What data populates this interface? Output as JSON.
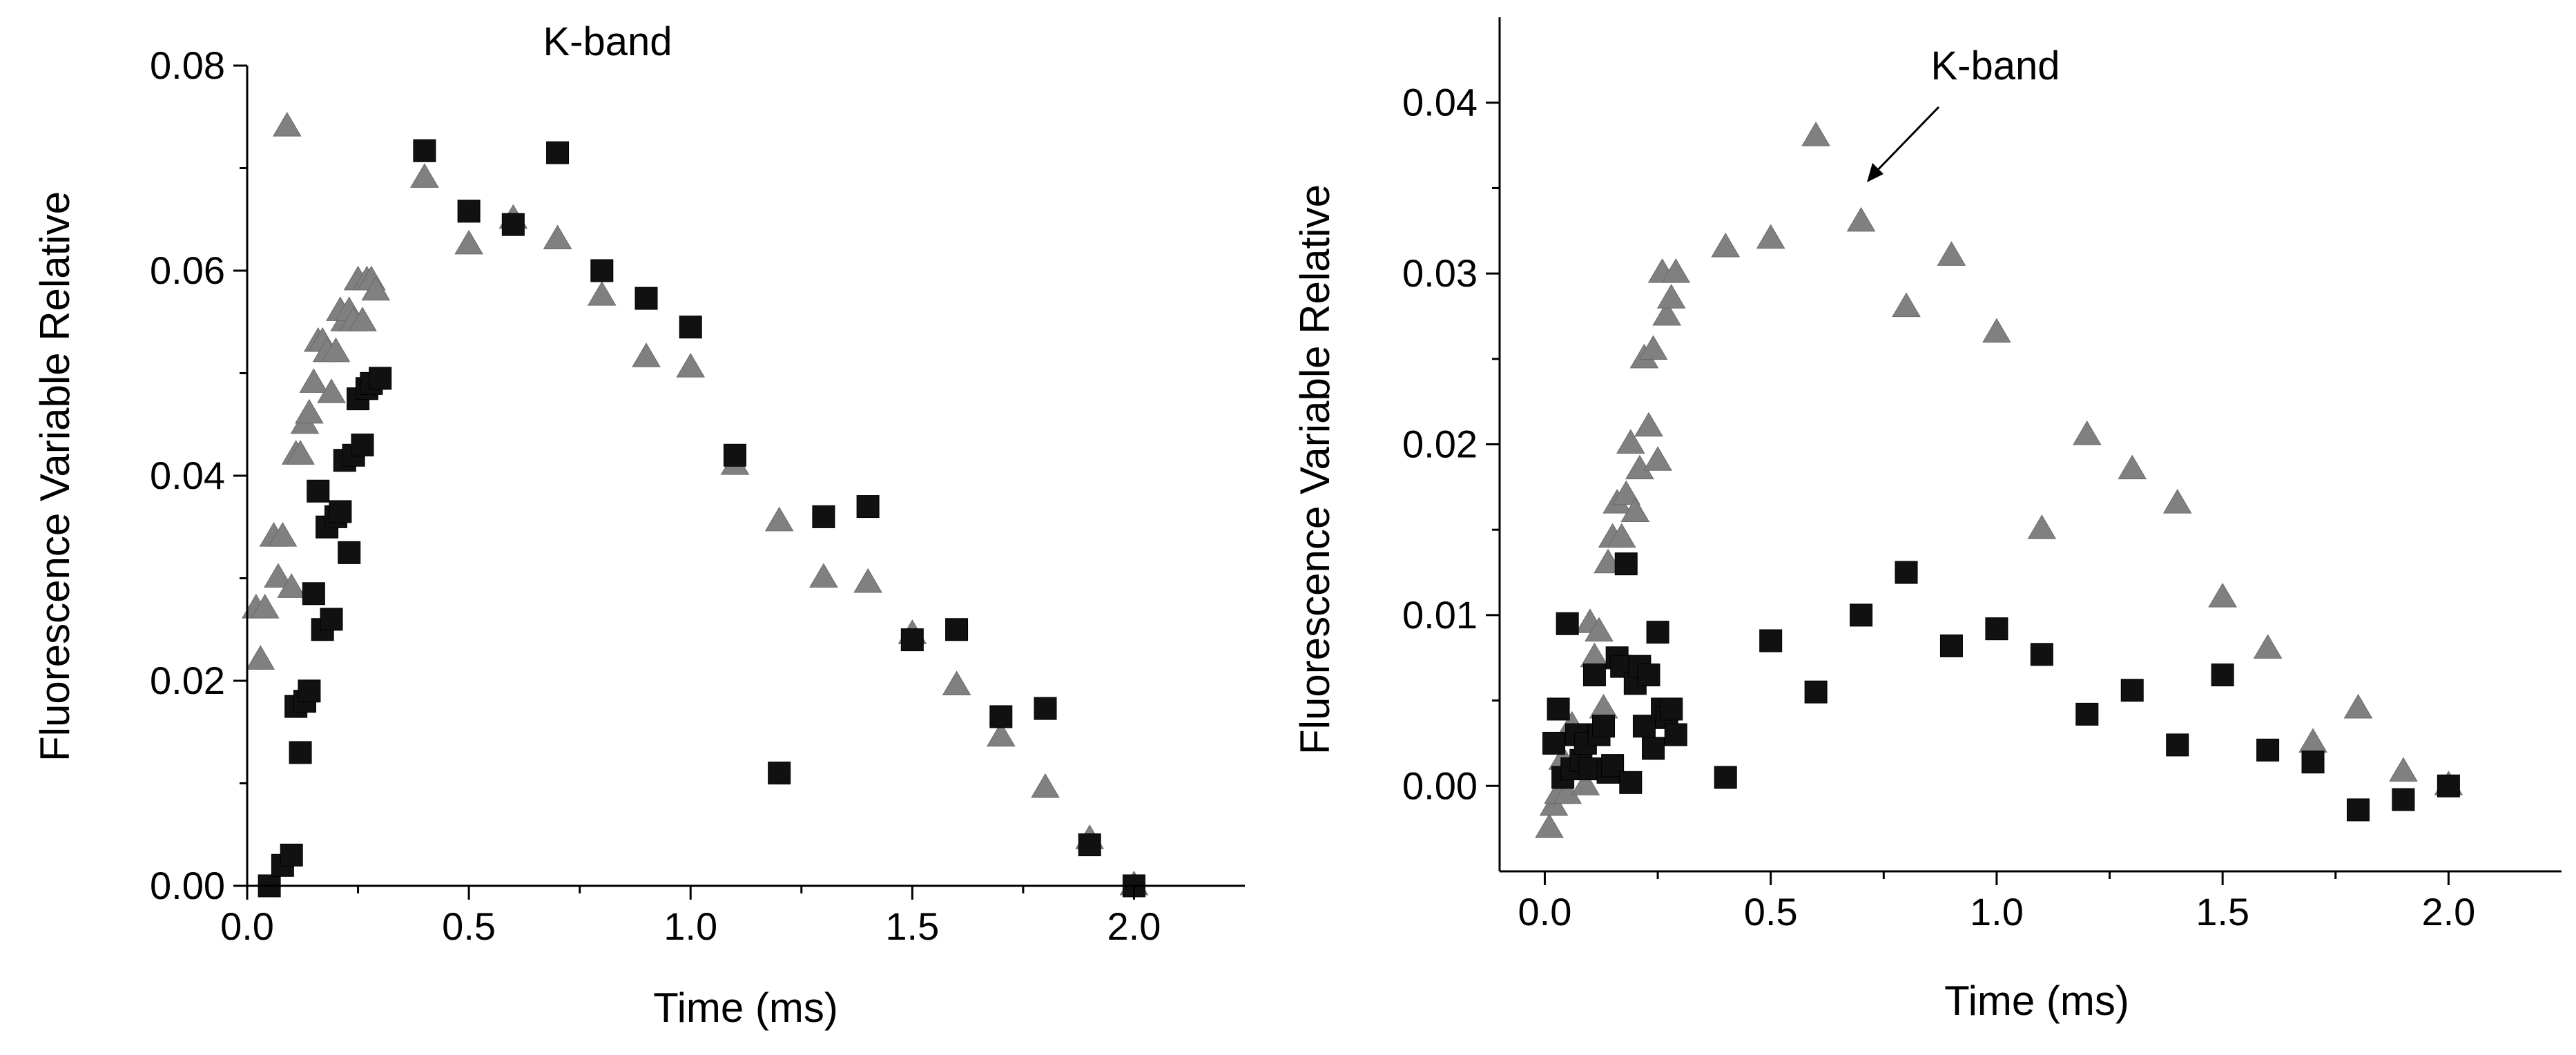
{
  "chart_data": [
    {
      "type": "scatter",
      "title": "",
      "annotation": "K-band",
      "xlabel": "Time  (ms)",
      "ylabel": "Fluorescence Variable Relative",
      "xlim": [
        0.0,
        2.25
      ],
      "ylim": [
        0.0,
        0.08
      ],
      "xticks": [
        0.0,
        0.5,
        1.0,
        1.5,
        2.0
      ],
      "xtick_labels": [
        "0.0",
        "0.5",
        "1.0",
        "1.5",
        "2.0"
      ],
      "yticks": [
        0.0,
        0.02,
        0.04,
        0.06,
        0.08
      ],
      "ytick_labels": [
        "0.00",
        "0.02",
        "0.04",
        "0.06",
        "0.08"
      ],
      "grid": false,
      "series": [
        {
          "name": "squares",
          "marker": "square",
          "color": "#111111",
          "x": [
            0.05,
            0.08,
            0.1,
            0.11,
            0.12,
            0.13,
            0.14,
            0.15,
            0.16,
            0.17,
            0.18,
            0.19,
            0.2,
            0.21,
            0.22,
            0.23,
            0.24,
            0.25,
            0.26,
            0.27,
            0.28,
            0.3,
            0.4,
            0.5,
            0.6,
            0.7,
            0.8,
            0.9,
            1.0,
            1.1,
            1.2,
            1.3,
            1.4,
            1.5,
            1.6,
            1.7,
            1.8,
            1.9,
            2.0
          ],
          "y": [
            0.0,
            0.002,
            0.003,
            0.0175,
            0.013,
            0.018,
            0.019,
            0.0285,
            0.0385,
            0.025,
            0.035,
            0.026,
            0.036,
            0.0365,
            0.0415,
            0.0325,
            0.042,
            0.0475,
            0.043,
            0.0485,
            0.049,
            0.0495,
            0.0717,
            0.0658,
            0.0645,
            0.0715,
            0.06,
            0.0573,
            0.0545,
            0.042,
            0.011,
            0.036,
            0.037,
            0.024,
            0.025,
            0.0165,
            0.0173,
            0.004,
            0.0
          ]
        },
        {
          "name": "triangles",
          "marker": "triangle",
          "color": "#808080",
          "x": [
            0.02,
            0.03,
            0.04,
            0.06,
            0.07,
            0.08,
            0.09,
            0.1,
            0.11,
            0.12,
            0.13,
            0.14,
            0.15,
            0.16,
            0.17,
            0.18,
            0.19,
            0.2,
            0.21,
            0.22,
            0.23,
            0.24,
            0.25,
            0.26,
            0.27,
            0.28,
            0.29,
            0.4,
            0.5,
            0.6,
            0.7,
            0.8,
            0.9,
            1.0,
            1.1,
            1.2,
            1.3,
            1.4,
            1.5,
            1.6,
            1.7,
            1.8,
            1.9,
            2.0
          ],
          "y": [
            0.027,
            0.022,
            0.027,
            0.034,
            0.03,
            0.034,
            0.074,
            0.029,
            0.042,
            0.042,
            0.045,
            0.046,
            0.049,
            0.053,
            0.053,
            0.052,
            0.048,
            0.052,
            0.056,
            0.055,
            0.056,
            0.055,
            0.059,
            0.055,
            0.059,
            0.059,
            0.058,
            0.069,
            0.0625,
            0.065,
            0.063,
            0.0575,
            0.0515,
            0.0505,
            0.041,
            0.0355,
            0.03,
            0.0295,
            0.0245,
            0.0195,
            0.0145,
            0.0095,
            0.0045,
            0.0
          ]
        }
      ]
    },
    {
      "type": "scatter",
      "title": "",
      "annotation": "K-band",
      "xlabel": "Time  (ms)",
      "ylabel": "Fluorescence Variable Relative",
      "xlim": [
        -0.1,
        2.25
      ],
      "ylim": [
        -0.005,
        0.045
      ],
      "xticks": [
        0.0,
        0.5,
        1.0,
        1.5,
        2.0
      ],
      "xtick_labels": [
        "0.0",
        "0.5",
        "1.0",
        "1.5",
        "2.0"
      ],
      "yticks": [
        0.0,
        0.01,
        0.02,
        0.03,
        0.04
      ],
      "ytick_labels": [
        "0.00",
        "0.01",
        "0.02",
        "0.03",
        "0.04"
      ],
      "grid": false,
      "series": [
        {
          "name": "squares",
          "marker": "square",
          "color": "#111111",
          "x": [
            0.02,
            0.03,
            0.04,
            0.05,
            0.06,
            0.07,
            0.08,
            0.09,
            0.1,
            0.11,
            0.12,
            0.13,
            0.14,
            0.15,
            0.16,
            0.17,
            0.18,
            0.19,
            0.2,
            0.21,
            0.22,
            0.23,
            0.24,
            0.25,
            0.26,
            0.27,
            0.28,
            0.29,
            0.4,
            0.5,
            0.6,
            0.7,
            0.8,
            0.9,
            1.0,
            1.1,
            1.2,
            1.3,
            1.4,
            1.5,
            1.6,
            1.7,
            1.8,
            1.9,
            2.0
          ],
          "y": [
            0.0025,
            0.0045,
            0.0005,
            0.0095,
            0.001,
            0.003,
            0.0015,
            0.0025,
            0.001,
            0.0065,
            0.003,
            0.0035,
            0.0008,
            0.0012,
            0.0075,
            0.007,
            0.013,
            0.0002,
            0.006,
            0.007,
            0.0035,
            0.0065,
            0.0022,
            0.009,
            0.0045,
            0.004,
            0.0045,
            0.003,
            0.0005,
            0.0085,
            0.0055,
            0.01,
            0.0125,
            0.0082,
            0.0092,
            0.0077,
            0.0042,
            0.0056,
            0.0024,
            0.0065,
            0.0021,
            0.0014,
            -0.0014,
            -0.0008,
            0.0
          ]
        },
        {
          "name": "triangles",
          "marker": "triangle",
          "color": "#808080",
          "x": [
            0.01,
            0.02,
            0.03,
            0.04,
            0.05,
            0.06,
            0.07,
            0.08,
            0.09,
            0.1,
            0.11,
            0.12,
            0.13,
            0.14,
            0.15,
            0.16,
            0.17,
            0.18,
            0.19,
            0.2,
            0.21,
            0.22,
            0.23,
            0.24,
            0.25,
            0.26,
            0.27,
            0.28,
            0.29,
            0.4,
            0.5,
            0.6,
            0.7,
            0.8,
            0.9,
            1.0,
            1.1,
            1.2,
            1.3,
            1.4,
            1.5,
            1.6,
            1.7,
            1.8,
            1.9,
            2.0
          ],
          "y": [
            -0.0025,
            -0.0012,
            -0.0005,
            0.0015,
            -0.0005,
            0.0035,
            0.0015,
            0.001,
            0.0,
            0.0095,
            0.0075,
            0.009,
            0.0045,
            0.013,
            0.0145,
            0.0165,
            0.0145,
            0.017,
            0.02,
            0.016,
            0.0185,
            0.025,
            0.021,
            0.0255,
            0.019,
            0.03,
            0.0275,
            0.0285,
            0.03,
            0.0315,
            0.032,
            0.038,
            0.033,
            0.028,
            0.031,
            0.0265,
            0.015,
            0.0205,
            0.0185,
            0.0165,
            0.011,
            0.008,
            0.0025,
            0.0045,
            0.0008,
            0.0
          ]
        }
      ]
    }
  ]
}
